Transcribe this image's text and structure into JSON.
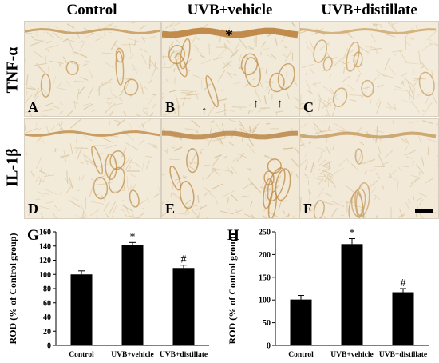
{
  "columns": [
    "Control",
    "UVB+vehicle",
    "UVB+distillate"
  ],
  "rows": [
    "TNF-α",
    "IL-1β"
  ],
  "panels": [
    "A",
    "B",
    "C",
    "D",
    "E",
    "F"
  ],
  "annotations": {
    "asterisk": "*"
  },
  "chart_data": [
    {
      "panel": "G",
      "type": "bar",
      "categories": [
        "Control",
        "UVB+vehicle",
        "UVB+distillate"
      ],
      "values": [
        100,
        141,
        109
      ],
      "errors": [
        5,
        4,
        4
      ],
      "markers": [
        "",
        "*",
        "#"
      ],
      "ylabel": "ROD (% of Control group)",
      "ylim": [
        0,
        160
      ],
      "yticks": [
        0,
        20,
        40,
        60,
        80,
        100,
        120,
        140,
        160
      ]
    },
    {
      "panel": "H",
      "type": "bar",
      "categories": [
        "Control",
        "UVB+vehicle",
        "UVB+distillate"
      ],
      "values": [
        101,
        223,
        117
      ],
      "errors": [
        9,
        12,
        8
      ],
      "markers": [
        "",
        "*",
        "#"
      ],
      "ylabel": "ROD (% of Control group)",
      "ylim": [
        0,
        250
      ],
      "yticks": [
        0,
        50,
        100,
        150,
        200,
        250
      ]
    }
  ]
}
